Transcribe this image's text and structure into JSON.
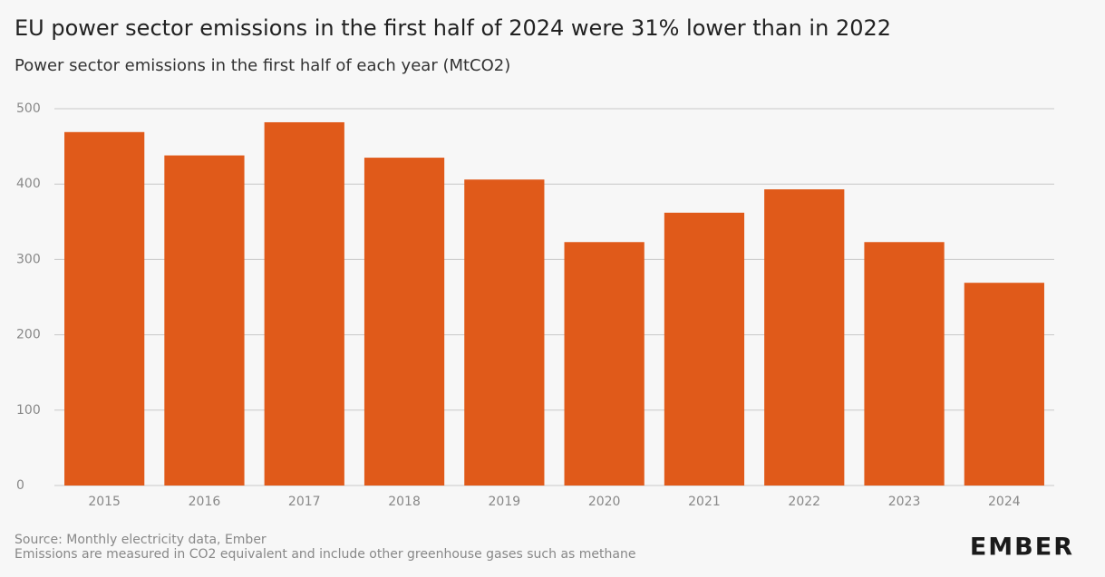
{
  "chart_data": {
    "type": "bar",
    "title": "EU power sector emissions in the first half of 2024 were 31% lower than in 2022",
    "subtitle": "Power sector emissions in the first half of each year (MtCO2)",
    "categories": [
      "2015",
      "2016",
      "2017",
      "2018",
      "2019",
      "2020",
      "2021",
      "2022",
      "2023",
      "2024"
    ],
    "values": [
      469,
      438,
      482,
      435,
      406,
      323,
      362,
      393,
      323,
      269
    ],
    "color": "#e05a1a",
    "ylim": [
      0,
      500
    ],
    "yticks": [
      0,
      100,
      200,
      300,
      400,
      500
    ],
    "grid": true,
    "source": "Source: Monthly electricity data, Ember",
    "note": "Emissions are measured in CO2 equivalent and include other greenhouse gases such as methane",
    "logo": "EMBER"
  }
}
